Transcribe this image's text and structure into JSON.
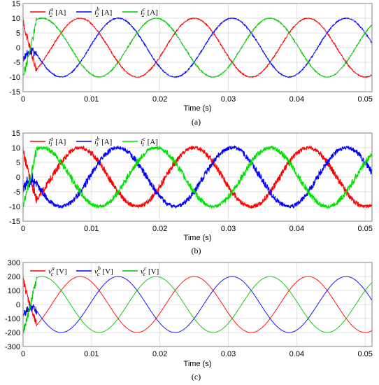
{
  "chart_data": [
    {
      "type": "line",
      "caption": "(a)",
      "xlabel": "Time (s)",
      "ylabel": "",
      "xlim": [
        0,
        0.051
      ],
      "ylim": [
        -15,
        15
      ],
      "xticks": [
        "0",
        "0.01",
        "0.02",
        "0.03",
        "0.04",
        "0.05"
      ],
      "yticks": [
        "15",
        "10",
        "5",
        "0",
        "-5",
        "-10",
        "-15"
      ],
      "grid": true,
      "legend_position": "top-left",
      "waveform": {
        "amplitude": 10,
        "frequency_hz": 60,
        "ripple": 0.3,
        "startup_transient_s": 0.002
      },
      "series": [
        {
          "name": "i",
          "sup": "a",
          "sub": "2",
          "unit": "[A]",
          "color": "#ff0000",
          "phase_deg": 0
        },
        {
          "name": "i",
          "sup": "b",
          "sub": "2",
          "unit": "[A]",
          "color": "#0000ff",
          "phase_deg": -120
        },
        {
          "name": "i",
          "sup": "c",
          "sub": "2",
          "unit": "[A]",
          "color": "#00c800",
          "phase_deg": 120
        }
      ]
    },
    {
      "type": "line",
      "caption": "(b)",
      "xlabel": "Time (s)",
      "ylabel": "",
      "xlim": [
        0,
        0.051
      ],
      "ylim": [
        -15,
        15
      ],
      "xticks": [
        "0",
        "0.01",
        "0.02",
        "0.03",
        "0.04",
        "0.05"
      ],
      "yticks": [
        "15",
        "10",
        "5",
        "0",
        "-5",
        "-10",
        "-15"
      ],
      "grid": true,
      "legend_position": "top-left",
      "waveform": {
        "amplitude": 10,
        "frequency_hz": 60,
        "ripple": 1.2,
        "startup_transient_s": 0.002
      },
      "series": [
        {
          "name": "i",
          "sup": "a",
          "sub": "1",
          "unit": "[A]",
          "color": "#ff0000",
          "phase_deg": 0
        },
        {
          "name": "i",
          "sup": "b",
          "sub": "1",
          "unit": "[A]",
          "color": "#0000ff",
          "phase_deg": -120
        },
        {
          "name": "i",
          "sup": "c",
          "sub": "1",
          "unit": "[A]",
          "color": "#00e000",
          "phase_deg": 120
        }
      ]
    },
    {
      "type": "line",
      "caption": "(c)",
      "xlabel": "Time (s)",
      "ylabel": "",
      "xlim": [
        0,
        0.051
      ],
      "ylim": [
        -300,
        300
      ],
      "xticks": [
        "0",
        "0.01",
        "0.02",
        "0.03",
        "0.04",
        "0.05"
      ],
      "yticks": [
        "300",
        "200",
        "100",
        "0",
        "-100",
        "-200",
        "-300"
      ],
      "grid": true,
      "legend_position": "top-left",
      "waveform": {
        "amplitude": 200,
        "frequency_hz": 60,
        "ripple": 0,
        "startup_transient_s": 0.002
      },
      "series": [
        {
          "name": "v",
          "sup": "a",
          "sub": "c",
          "unit": "[V]",
          "color": "#ff0000",
          "phase_deg": 0
        },
        {
          "name": "v",
          "sup": "b",
          "sub": "c",
          "unit": "[V]",
          "color": "#0000ff",
          "phase_deg": -120
        },
        {
          "name": "v",
          "sup": "c",
          "sub": "c",
          "unit": "[V]",
          "color": "#00c800",
          "phase_deg": 120
        }
      ]
    }
  ]
}
